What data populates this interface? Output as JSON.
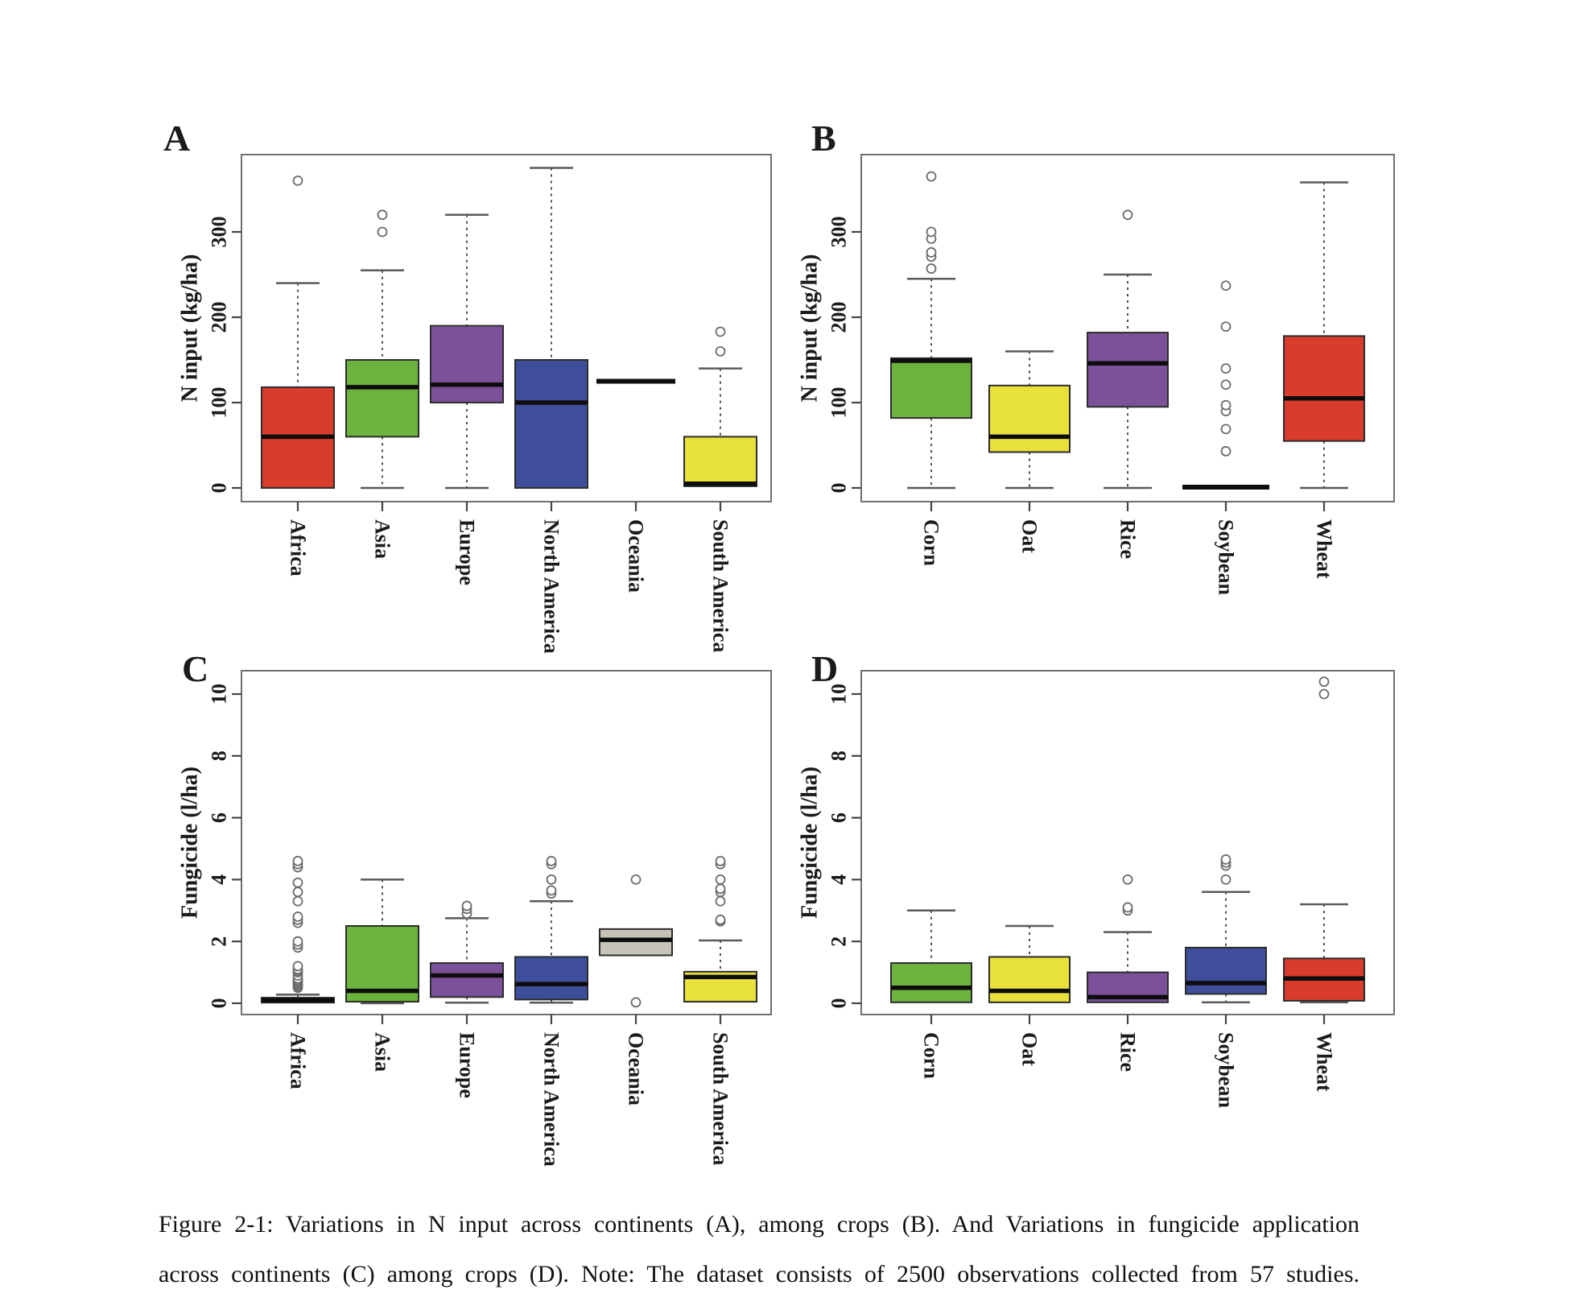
{
  "caption": {
    "line1": "Figure 2-1: Variations in N input across continents (A), among crops (B). And Variations in fungicide application",
    "line2": "across continents (C) among crops (D). Note: The dataset consists of 2500 observations collected from 57 studies."
  },
  "style": {
    "frame_color": "#6f6f6f",
    "tick_color": "#454545",
    "text_color": "#1b1b1b",
    "whisker_color": "#4f4f4f",
    "cap_color": "#5a5a5a",
    "box_stroke": "#2d2d2d",
    "median_color": "#0d0d0d",
    "outlier_stroke": "#6b6b6b",
    "outlier_fill": "#ffffff",
    "background": "#ffffff"
  },
  "chart_data": [
    {
      "panel": "A",
      "type": "boxplot",
      "ylabel": "N input (kg/ha)",
      "yticks": [
        0,
        100,
        200,
        300
      ],
      "ylim": [
        -16,
        391
      ],
      "grid": false,
      "categories": [
        "Africa",
        "Asia",
        "Europe",
        "North America",
        "Oceania",
        "South America"
      ],
      "series": [
        {
          "category": "Africa",
          "color": "#d93b2c",
          "q1": 0,
          "median": 60,
          "q3": 118,
          "whisker_low": 0,
          "whisker_high": 240,
          "outliers": [
            360
          ]
        },
        {
          "category": "Asia",
          "color": "#6cb33e",
          "q1": 60,
          "median": 118,
          "q3": 150,
          "whisker_low": 0,
          "whisker_high": 255,
          "outliers": [
            300,
            320
          ]
        },
        {
          "category": "Europe",
          "color": "#7b5199",
          "q1": 100,
          "median": 121,
          "q3": 190,
          "whisker_low": 0,
          "whisker_high": 320,
          "outliers": []
        },
        {
          "category": "North America",
          "color": "#3e4e9b",
          "q1": 0,
          "median": 100,
          "q3": 150,
          "whisker_low": 0,
          "whisker_high": 375,
          "outliers": []
        },
        {
          "category": "Oceania",
          "color": "#1b1b1b",
          "degenerate": true,
          "q1": 125,
          "median": 125,
          "q3": 125,
          "whisker_low": 125,
          "whisker_high": 125,
          "outliers": []
        },
        {
          "category": "South America",
          "color": "#e8e13c",
          "q1": 2,
          "median": 5,
          "q3": 60,
          "whisker_low": 2,
          "whisker_high": 140,
          "outliers": [
            160,
            183
          ]
        }
      ]
    },
    {
      "panel": "B",
      "type": "boxplot",
      "ylabel": "N input (kg/ha)",
      "yticks": [
        0,
        100,
        200,
        300
      ],
      "ylim": [
        -16,
        391
      ],
      "grid": false,
      "categories": [
        "Corn",
        "Oat",
        "Rice",
        "Soybean",
        "Wheat"
      ],
      "series": [
        {
          "category": "Corn",
          "color": "#6cb33e",
          "q1": 82,
          "median": 149,
          "q3": 152,
          "whisker_low": 0,
          "whisker_high": 245,
          "outliers": [
            257,
            271,
            276,
            292,
            300,
            365
          ]
        },
        {
          "category": "Oat",
          "color": "#e8e13c",
          "q1": 42,
          "median": 60,
          "q3": 120,
          "whisker_low": 0,
          "whisker_high": 160,
          "outliers": []
        },
        {
          "category": "Rice",
          "color": "#7b5199",
          "q1": 95,
          "median": 146,
          "q3": 182,
          "whisker_low": 0,
          "whisker_high": 250,
          "outliers": [
            320
          ]
        },
        {
          "category": "Soybean",
          "color": "#1b1b1b",
          "degenerate": true,
          "q1": 1,
          "median": 1,
          "q3": 1,
          "whisker_low": 1,
          "whisker_high": 1,
          "outliers": [
            43,
            69,
            90,
            97,
            121,
            140,
            189,
            237
          ]
        },
        {
          "category": "Wheat",
          "color": "#d93b2c",
          "q1": 55,
          "median": 105,
          "q3": 178,
          "whisker_low": 0,
          "whisker_high": 358,
          "outliers": []
        }
      ]
    },
    {
      "panel": "C",
      "type": "boxplot",
      "ylabel": "Fungicide (l/ha)",
      "yticks": [
        0,
        2,
        4,
        6,
        8,
        10
      ],
      "ylim": [
        -0.36,
        10.75
      ],
      "grid": false,
      "categories": [
        "Africa",
        "Asia",
        "Europe",
        "North America",
        "Oceania",
        "South America"
      ],
      "series": [
        {
          "category": "Africa",
          "color": "#7c2b22",
          "q1": 0.02,
          "median": 0.1,
          "q3": 0.18,
          "whisker_low": 0.02,
          "whisker_high": 0.28,
          "outliers": [
            0.5,
            0.55,
            0.6,
            0.65,
            0.7,
            0.75,
            0.8,
            0.9,
            1.0,
            1.05,
            1.1,
            1.2,
            1.8,
            1.9,
            2.0,
            2.6,
            2.7,
            2.8,
            3.3,
            3.6,
            3.9,
            4.4,
            4.5,
            4.6
          ]
        },
        {
          "category": "Asia",
          "color": "#6cb33e",
          "q1": 0.05,
          "median": 0.4,
          "q3": 2.5,
          "whisker_low": 0,
          "whisker_high": 4.0,
          "outliers": []
        },
        {
          "category": "Europe",
          "color": "#7b5199",
          "q1": 0.2,
          "median": 0.9,
          "q3": 1.3,
          "whisker_low": 0.02,
          "whisker_high": 2.75,
          "outliers": [
            2.9,
            3.05,
            3.15
          ]
        },
        {
          "category": "North America",
          "color": "#3e4e9b",
          "q1": 0.12,
          "median": 0.62,
          "q3": 1.5,
          "whisker_low": 0.02,
          "whisker_high": 3.3,
          "outliers": [
            3.55,
            3.65,
            4.0,
            4.5,
            4.6
          ]
        },
        {
          "category": "Oceania",
          "color": "#c7c3b9",
          "q1": 1.55,
          "median": 2.05,
          "q3": 2.4,
          "whisker_low": 1.55,
          "whisker_high": 2.4,
          "outliers": [
            0.03,
            4.0
          ]
        },
        {
          "category": "South America",
          "color": "#e8e13c",
          "q1": 0.05,
          "median": 0.85,
          "q3": 1.02,
          "whisker_low": 0.05,
          "whisker_high": 2.03,
          "outliers": [
            2.65,
            2.7,
            3.3,
            3.6,
            3.7,
            4.0,
            4.5,
            4.6
          ]
        }
      ]
    },
    {
      "panel": "D",
      "type": "boxplot",
      "ylabel": "Fungicide (l/ha)",
      "yticks": [
        0,
        2,
        4,
        6,
        8,
        10
      ],
      "ylim": [
        -0.36,
        10.75
      ],
      "grid": false,
      "categories": [
        "Corn",
        "Oat",
        "Rice",
        "Soybean",
        "Wheat"
      ],
      "series": [
        {
          "category": "Corn",
          "color": "#6cb33e",
          "q1": 0.03,
          "median": 0.5,
          "q3": 1.3,
          "whisker_low": 0.03,
          "whisker_high": 3.0,
          "outliers": []
        },
        {
          "category": "Oat",
          "color": "#e8e13c",
          "q1": 0.03,
          "median": 0.4,
          "q3": 1.5,
          "whisker_low": 0.03,
          "whisker_high": 2.5,
          "outliers": []
        },
        {
          "category": "Rice",
          "color": "#7b5199",
          "q1": 0.03,
          "median": 0.2,
          "q3": 1.0,
          "whisker_low": 0.03,
          "whisker_high": 2.3,
          "outliers": [
            3.0,
            3.1,
            4.0
          ]
        },
        {
          "category": "Soybean",
          "color": "#3e4e9b",
          "q1": 0.3,
          "median": 0.65,
          "q3": 1.8,
          "whisker_low": 0.03,
          "whisker_high": 3.6,
          "outliers": [
            4.0,
            4.45,
            4.55,
            4.65
          ]
        },
        {
          "category": "Wheat",
          "color": "#d93b2c",
          "q1": 0.08,
          "median": 0.8,
          "q3": 1.45,
          "whisker_low": 0.03,
          "whisker_high": 3.2,
          "outliers": [
            10.0,
            10.4
          ]
        }
      ]
    }
  ]
}
